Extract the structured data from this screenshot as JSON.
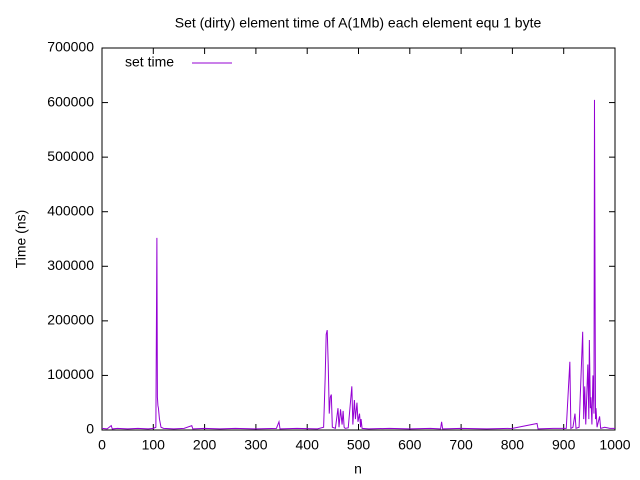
{
  "chart_data": {
    "type": "line",
    "title": "Set (dirty) element time of A(1Mb) each element equ 1 byte",
    "x_label": "n",
    "y_label": "Time (ns)",
    "legend_position": "top-left",
    "xlim": [
      0,
      1000
    ],
    "xticks": [
      0,
      100,
      200,
      300,
      400,
      500,
      600,
      700,
      800,
      900,
      1000
    ],
    "ylim": [
      0,
      700000
    ],
    "yticks": [
      0,
      100000,
      200000,
      300000,
      400000,
      500000,
      600000,
      700000
    ],
    "x": [
      0,
      10,
      18,
      20,
      30,
      50,
      70,
      90,
      100,
      105,
      107,
      108,
      109,
      110,
      112,
      115,
      120,
      140,
      160,
      175,
      177,
      200,
      230,
      260,
      300,
      340,
      345,
      347,
      380,
      420,
      432,
      435,
      437,
      439,
      441,
      443,
      445,
      447,
      449,
      455,
      460,
      462,
      465,
      468,
      470,
      472,
      474,
      480,
      487,
      489,
      492,
      494,
      497,
      499,
      502,
      504,
      505,
      507,
      520,
      560,
      600,
      640,
      660,
      662,
      664,
      700,
      750,
      800,
      848,
      850,
      880,
      905,
      912,
      914,
      918,
      922,
      924,
      930,
      937,
      939,
      941,
      943,
      947,
      949,
      950,
      952,
      953,
      955,
      957,
      959,
      960,
      962,
      963,
      965,
      970,
      972,
      980,
      990,
      1000
    ],
    "series": [
      {
        "name": "set time",
        "color": "#9400d3",
        "values": [
          3000,
          2000,
          8000,
          2000,
          3000,
          2000,
          3000,
          2000,
          3000,
          5000,
          352000,
          60000,
          45000,
          40000,
          20000,
          5000,
          3000,
          2000,
          3000,
          8000,
          2000,
          3000,
          2000,
          3000,
          2000,
          3000,
          15000,
          2000,
          3000,
          2000,
          5000,
          95000,
          175000,
          183000,
          120000,
          30000,
          60000,
          65000,
          5000,
          3000,
          40000,
          5000,
          38000,
          10000,
          35000,
          5000,
          3000,
          4000,
          80000,
          10000,
          55000,
          20000,
          50000,
          15000,
          30000,
          5000,
          20000,
          3000,
          2000,
          3000,
          2000,
          3000,
          2000,
          15000,
          2000,
          3000,
          2000,
          3000,
          12000,
          2000,
          3000,
          3000,
          125000,
          3000,
          5000,
          30000,
          3000,
          5000,
          180000,
          20000,
          80000,
          10000,
          120000,
          20000,
          165000,
          40000,
          60000,
          10000,
          100000,
          30000,
          605000,
          20000,
          40000,
          5000,
          25000,
          3000,
          5000,
          3000,
          3000
        ]
      }
    ]
  }
}
